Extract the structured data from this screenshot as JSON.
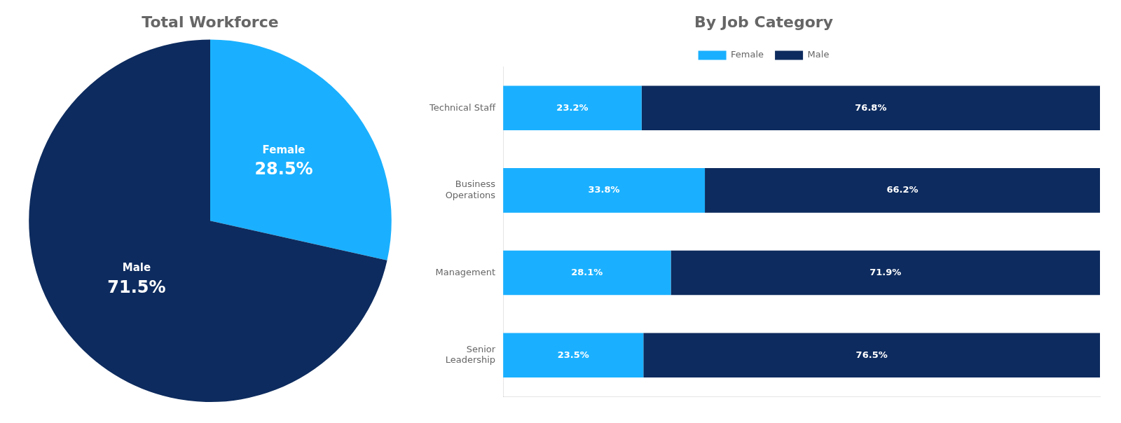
{
  "chart_data": [
    {
      "type": "pie",
      "title": "Total Workforce",
      "categories": [
        "Female",
        "Male"
      ],
      "values": [
        28.5,
        71.5
      ],
      "value_labels": [
        "28.5%",
        "71.5%"
      ],
      "colors": [
        "#1ab0ff",
        "#0d2b5e"
      ],
      "data_labels": true
    },
    {
      "type": "bar",
      "title": "By Job Category",
      "orientation": "horizontal",
      "stacked": true,
      "categories": [
        "Technical Staff",
        "Business\nOperations",
        "Management",
        "Senior\nLeadership"
      ],
      "series": [
        {
          "name": "Female",
          "color": "#1ab0ff",
          "values": [
            23.2,
            33.8,
            28.1,
            23.5
          ],
          "value_labels": [
            "23.2%",
            "33.8%",
            "28.1%",
            "23.5%"
          ]
        },
        {
          "name": "Male",
          "color": "#0d2b5e",
          "values": [
            76.8,
            66.2,
            71.9,
            76.5
          ],
          "value_labels": [
            "76.8%",
            "66.2%",
            "71.9%",
            "76.5%"
          ]
        }
      ],
      "xlim": [
        0,
        100
      ],
      "grid": false,
      "legend": "top",
      "data_labels": true,
      "tick_labels": "y"
    }
  ]
}
